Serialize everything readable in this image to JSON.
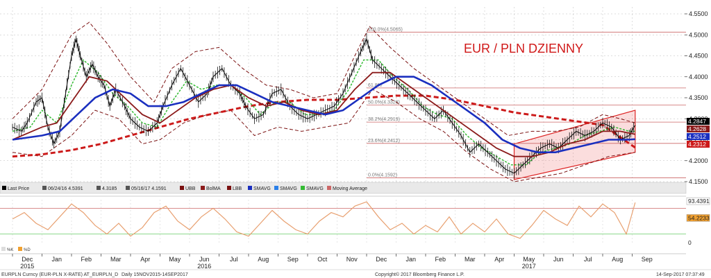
{
  "chart_data": {
    "type": "line",
    "title": "EUR / PLN DZIENNY",
    "instrument": "EURPLN Curncy (EUR-PLN X-RATE) AT_EURPLN_D",
    "period": "Daily 15NOV2015-14SEP2017",
    "copyright": "Copyright© 2017 Bloomberg Finance L.P.",
    "timestamp": "14-Sep-2017 07:37:49",
    "colors": {
      "price": "#000000",
      "bollinger": "#7a1010",
      "ma_short": "#33bb33",
      "ma_mid": "#8b1a1a",
      "ma_blue": "#1a2fbf",
      "ma_long": "#cc1a1a",
      "fib": "#cc6666",
      "channel": "#dd2222",
      "oscillator": "#e8a070"
    },
    "legend": [
      {
        "key": "last-price",
        "label": "Last Price"
      },
      {
        "key": "high",
        "label": "06/24/16 4.5391"
      },
      {
        "key": "avg",
        "label": "4.3185"
      },
      {
        "key": "low",
        "label": "05/16/17 4.1591"
      },
      {
        "key": "ubb",
        "label": "UBB"
      },
      {
        "key": "bolma",
        "label": "BolMA"
      },
      {
        "key": "lbb",
        "label": "LBB"
      },
      {
        "key": "smavg1",
        "label": "SMAVG"
      },
      {
        "key": "smavg2",
        "label": "SMAVG"
      },
      {
        "key": "smavg3",
        "label": "SMAVG"
      },
      {
        "key": "mavg",
        "label": "Moving Average"
      }
    ],
    "y_axis": {
      "min": 4.15,
      "max": 4.55,
      "ticks": [
        4.15,
        4.2,
        4.25,
        4.3,
        4.35,
        4.4,
        4.45,
        4.5,
        4.55
      ],
      "tick_labels": [
        "4.1500",
        "4.2000",
        "4.2500",
        "4.3000",
        "4.3500",
        "4.4000",
        "4.4500",
        "4.5000",
        "4.5500"
      ]
    },
    "x_axis": {
      "labels": [
        "Dec",
        "Jan",
        "Feb",
        "Mar",
        "Apr",
        "May",
        "Jun",
        "Jul",
        "Aug",
        "Sep",
        "Oct",
        "Nov",
        "Dec",
        "Jan",
        "Feb",
        "Mar",
        "Apr",
        "May",
        "Jun",
        "Jul",
        "Aug",
        "Sep"
      ],
      "year_labels": [
        {
          "after": 0,
          "label": "2015"
        },
        {
          "after": 6,
          "label": "2016"
        },
        {
          "after": 17,
          "label": "2017"
        }
      ]
    },
    "fib_levels": [
      {
        "label": "100.0%(4.5065)",
        "value": 4.5065
      },
      {
        "label": "61.8%",
        "value": 4.3733
      },
      {
        "label": "50.0%(4.3328)",
        "value": 4.3328
      },
      {
        "label": "38.2%(4.2919)",
        "value": 4.2919
      },
      {
        "label": "23.6%(4.2412)",
        "value": 4.2412
      },
      {
        "label": "0.0%(4.1592)",
        "value": 4.1592
      }
    ],
    "last_values": [
      {
        "label": "4.2847",
        "value": 4.2847,
        "color": "#000000"
      },
      {
        "label": "4.2628",
        "value": 4.2628,
        "color": "#8b1a1a"
      },
      {
        "label": "4.2512",
        "value": 4.2512,
        "color": "#1a2fbf"
      },
      {
        "label": "4.2312",
        "value": 4.2312,
        "color": "#cc1a1a"
      }
    ],
    "oscillator": {
      "labels": [
        "93.4391",
        "54.2233",
        "0"
      ],
      "legend": [
        "%K",
        "%D"
      ]
    },
    "series_price": [
      [
        0,
        4.28
      ],
      [
        0.3,
        4.27
      ],
      [
        0.5,
        4.29
      ],
      [
        0.8,
        4.34
      ],
      [
        1.0,
        4.35
      ],
      [
        1.2,
        4.28
      ],
      [
        1.4,
        4.24
      ],
      [
        1.6,
        4.27
      ],
      [
        1.8,
        4.36
      ],
      [
        2.0,
        4.45
      ],
      [
        2.15,
        4.49
      ],
      [
        2.3,
        4.45
      ],
      [
        2.5,
        4.4
      ],
      [
        2.7,
        4.43
      ],
      [
        2.9,
        4.4
      ],
      [
        3.1,
        4.38
      ],
      [
        3.3,
        4.33
      ],
      [
        3.5,
        4.37
      ],
      [
        3.8,
        4.33
      ],
      [
        4.0,
        4.3
      ],
      [
        4.3,
        4.28
      ],
      [
        4.6,
        4.27
      ],
      [
        4.9,
        4.29
      ],
      [
        5.1,
        4.33
      ],
      [
        5.4,
        4.38
      ],
      [
        5.7,
        4.42
      ],
      [
        6.0,
        4.38
      ],
      [
        6.3,
        4.34
      ],
      [
        6.6,
        4.36
      ],
      [
        6.8,
        4.4
      ],
      [
        7.1,
        4.42
      ],
      [
        7.4,
        4.38
      ],
      [
        7.7,
        4.36
      ],
      [
        7.9,
        4.33
      ],
      [
        8.2,
        4.3
      ],
      [
        8.5,
        4.31
      ],
      [
        8.8,
        4.36
      ],
      [
        9.1,
        4.37
      ],
      [
        9.4,
        4.33
      ],
      [
        9.7,
        4.31
      ],
      [
        10.0,
        4.3
      ],
      [
        10.3,
        4.31
      ],
      [
        10.6,
        4.32
      ],
      [
        10.9,
        4.33
      ],
      [
        11.2,
        4.36
      ],
      [
        11.5,
        4.41
      ],
      [
        11.8,
        4.46
      ],
      [
        12.0,
        4.49
      ],
      [
        12.2,
        4.44
      ],
      [
        12.5,
        4.42
      ],
      [
        12.8,
        4.4
      ],
      [
        13.1,
        4.38
      ],
      [
        13.4,
        4.36
      ],
      [
        13.7,
        4.34
      ],
      [
        14.0,
        4.32
      ],
      [
        14.3,
        4.3
      ],
      [
        14.6,
        4.32
      ],
      [
        14.9,
        4.29
      ],
      [
        15.2,
        4.26
      ],
      [
        15.5,
        4.22
      ],
      [
        15.8,
        4.24
      ],
      [
        16.1,
        4.22
      ],
      [
        16.4,
        4.2
      ],
      [
        16.7,
        4.18
      ],
      [
        17.0,
        4.17
      ],
      [
        17.3,
        4.19
      ],
      [
        17.6,
        4.21
      ],
      [
        17.9,
        4.23
      ],
      [
        18.2,
        4.24
      ],
      [
        18.5,
        4.23
      ],
      [
        18.8,
        4.25
      ],
      [
        19.1,
        4.27
      ],
      [
        19.4,
        4.26
      ],
      [
        19.7,
        4.27
      ],
      [
        20.0,
        4.29
      ],
      [
        20.3,
        4.28
      ],
      [
        20.6,
        4.25
      ],
      [
        20.9,
        4.26
      ],
      [
        21.1,
        4.2847
      ]
    ],
    "series_ma_short": [
      [
        0,
        4.27
      ],
      [
        0.6,
        4.28
      ],
      [
        1.0,
        4.32
      ],
      [
        1.5,
        4.29
      ],
      [
        2.0,
        4.38
      ],
      [
        2.4,
        4.44
      ],
      [
        2.9,
        4.41
      ],
      [
        3.4,
        4.36
      ],
      [
        3.9,
        4.33
      ],
      [
        4.4,
        4.29
      ],
      [
        4.9,
        4.28
      ],
      [
        5.4,
        4.34
      ],
      [
        5.9,
        4.39
      ],
      [
        6.4,
        4.37
      ],
      [
        6.9,
        4.38
      ],
      [
        7.4,
        4.38
      ],
      [
        7.9,
        4.35
      ],
      [
        8.4,
        4.31
      ],
      [
        8.9,
        4.34
      ],
      [
        9.4,
        4.34
      ],
      [
        9.9,
        4.31
      ],
      [
        10.4,
        4.31
      ],
      [
        10.9,
        4.32
      ],
      [
        11.4,
        4.37
      ],
      [
        11.9,
        4.44
      ],
      [
        12.4,
        4.44
      ],
      [
        12.9,
        4.4
      ],
      [
        13.4,
        4.37
      ],
      [
        13.9,
        4.33
      ],
      [
        14.4,
        4.31
      ],
      [
        14.9,
        4.3
      ],
      [
        15.4,
        4.26
      ],
      [
        15.9,
        4.23
      ],
      [
        16.4,
        4.21
      ],
      [
        16.9,
        4.19
      ],
      [
        17.4,
        4.19
      ],
      [
        17.9,
        4.22
      ],
      [
        18.4,
        4.23
      ],
      [
        18.9,
        4.24
      ],
      [
        19.4,
        4.26
      ],
      [
        19.9,
        4.27
      ],
      [
        20.4,
        4.28
      ],
      [
        20.9,
        4.27
      ],
      [
        21.1,
        4.27
      ]
    ],
    "series_ma_mid": [
      [
        0,
        4.25
      ],
      [
        1.0,
        4.28
      ],
      [
        1.5,
        4.29
      ],
      [
        2.0,
        4.34
      ],
      [
        2.6,
        4.4
      ],
      [
        3.2,
        4.39
      ],
      [
        3.8,
        4.35
      ],
      [
        4.4,
        4.31
      ],
      [
        5.0,
        4.29
      ],
      [
        5.6,
        4.32
      ],
      [
        6.2,
        4.35
      ],
      [
        6.8,
        4.37
      ],
      [
        7.4,
        4.38
      ],
      [
        8.0,
        4.35
      ],
      [
        8.6,
        4.33
      ],
      [
        9.2,
        4.34
      ],
      [
        9.8,
        4.32
      ],
      [
        10.4,
        4.31
      ],
      [
        11.0,
        4.32
      ],
      [
        11.6,
        4.37
      ],
      [
        12.2,
        4.41
      ],
      [
        12.8,
        4.41
      ],
      [
        13.4,
        4.38
      ],
      [
        14.0,
        4.35
      ],
      [
        14.6,
        4.32
      ],
      [
        15.2,
        4.29
      ],
      [
        15.8,
        4.26
      ],
      [
        16.4,
        4.23
      ],
      [
        17.0,
        4.21
      ],
      [
        17.6,
        4.21
      ],
      [
        18.2,
        4.22
      ],
      [
        18.8,
        4.24
      ],
      [
        19.4,
        4.25
      ],
      [
        20.0,
        4.27
      ],
      [
        20.6,
        4.27
      ],
      [
        21.1,
        4.2628
      ]
    ],
    "series_ma_blue": [
      [
        0,
        4.25
      ],
      [
        1.0,
        4.26
      ],
      [
        1.6,
        4.27
      ],
      [
        2.2,
        4.31
      ],
      [
        2.8,
        4.35
      ],
      [
        3.4,
        4.37
      ],
      [
        4.0,
        4.36
      ],
      [
        4.6,
        4.33
      ],
      [
        5.2,
        4.33
      ],
      [
        5.8,
        4.34
      ],
      [
        6.4,
        4.36
      ],
      [
        7.0,
        4.38
      ],
      [
        7.6,
        4.38
      ],
      [
        8.2,
        4.36
      ],
      [
        8.8,
        4.34
      ],
      [
        9.4,
        4.33
      ],
      [
        10.0,
        4.32
      ],
      [
        10.6,
        4.31
      ],
      [
        11.2,
        4.32
      ],
      [
        11.8,
        4.35
      ],
      [
        12.4,
        4.38
      ],
      [
        13.0,
        4.4
      ],
      [
        13.6,
        4.4
      ],
      [
        14.2,
        4.38
      ],
      [
        14.8,
        4.35
      ],
      [
        15.4,
        4.32
      ],
      [
        16.0,
        4.29
      ],
      [
        16.6,
        4.25
      ],
      [
        17.2,
        4.23
      ],
      [
        17.8,
        4.22
      ],
      [
        18.4,
        4.22
      ],
      [
        19.0,
        4.23
      ],
      [
        19.6,
        4.24
      ],
      [
        20.2,
        4.25
      ],
      [
        20.8,
        4.25
      ],
      [
        21.1,
        4.2512
      ]
    ],
    "series_ma_long": [
      [
        0,
        4.21
      ],
      [
        1.0,
        4.215
      ],
      [
        2.0,
        4.225
      ],
      [
        3.0,
        4.24
      ],
      [
        4.0,
        4.26
      ],
      [
        5.0,
        4.28
      ],
      [
        6.0,
        4.3
      ],
      [
        7.0,
        4.315
      ],
      [
        8.0,
        4.33
      ],
      [
        9.0,
        4.34
      ],
      [
        10.0,
        4.345
      ],
      [
        11.0,
        4.345
      ],
      [
        12.0,
        4.35
      ],
      [
        13.0,
        4.355
      ],
      [
        14.0,
        4.355
      ],
      [
        15.0,
        4.345
      ],
      [
        16.0,
        4.33
      ],
      [
        17.0,
        4.315
      ],
      [
        18.0,
        4.305
      ],
      [
        19.0,
        4.295
      ],
      [
        20.0,
        4.285
      ],
      [
        21.1,
        4.2312
      ]
    ],
    "series_upper_band": [
      [
        0,
        4.3
      ],
      [
        1.0,
        4.37
      ],
      [
        2.0,
        4.5
      ],
      [
        2.6,
        4.53
      ],
      [
        3.2,
        4.48
      ],
      [
        4.0,
        4.4
      ],
      [
        4.8,
        4.34
      ],
      [
        5.4,
        4.42
      ],
      [
        6.2,
        4.46
      ],
      [
        7.0,
        4.47
      ],
      [
        7.8,
        4.42
      ],
      [
        8.6,
        4.38
      ],
      [
        9.4,
        4.37
      ],
      [
        10.2,
        4.35
      ],
      [
        11.0,
        4.36
      ],
      [
        11.6,
        4.45
      ],
      [
        12.1,
        4.52
      ],
      [
        12.8,
        4.47
      ],
      [
        13.6,
        4.42
      ],
      [
        14.4,
        4.38
      ],
      [
        15.2,
        4.34
      ],
      [
        16.0,
        4.3
      ],
      [
        16.8,
        4.26
      ],
      [
        17.6,
        4.27
      ],
      [
        18.4,
        4.27
      ],
      [
        19.2,
        4.28
      ],
      [
        20.0,
        4.31
      ],
      [
        20.6,
        4.3
      ],
      [
        21.1,
        4.29
      ]
    ],
    "series_lower_band": [
      [
        0,
        4.22
      ],
      [
        1.0,
        4.21
      ],
      [
        2.0,
        4.26
      ],
      [
        2.8,
        4.32
      ],
      [
        3.6,
        4.3
      ],
      [
        4.4,
        4.24
      ],
      [
        5.0,
        4.25
      ],
      [
        5.8,
        4.29
      ],
      [
        6.6,
        4.31
      ],
      [
        7.4,
        4.32
      ],
      [
        8.2,
        4.26
      ],
      [
        9.0,
        4.28
      ],
      [
        9.8,
        4.27
      ],
      [
        10.6,
        4.28
      ],
      [
        11.4,
        4.29
      ],
      [
        12.2,
        4.37
      ],
      [
        13.0,
        4.34
      ],
      [
        13.8,
        4.3
      ],
      [
        14.6,
        4.27
      ],
      [
        15.4,
        4.22
      ],
      [
        16.2,
        4.18
      ],
      [
        17.0,
        4.15
      ],
      [
        17.8,
        4.16
      ],
      [
        18.6,
        4.17
      ],
      [
        19.4,
        4.19
      ],
      [
        20.2,
        4.21
      ],
      [
        21.1,
        4.22
      ]
    ],
    "series_oscillator": [
      [
        0,
        55
      ],
      [
        0.4,
        70
      ],
      [
        0.8,
        45
      ],
      [
        1.2,
        30
      ],
      [
        1.6,
        60
      ],
      [
        2.0,
        90
      ],
      [
        2.4,
        70
      ],
      [
        2.8,
        40
      ],
      [
        3.2,
        20
      ],
      [
        3.6,
        45
      ],
      [
        4.0,
        15
      ],
      [
        4.4,
        35
      ],
      [
        4.8,
        70
      ],
      [
        5.2,
        85
      ],
      [
        5.6,
        50
      ],
      [
        6.0,
        30
      ],
      [
        6.4,
        60
      ],
      [
        6.8,
        80
      ],
      [
        7.2,
        55
      ],
      [
        7.6,
        25
      ],
      [
        8.0,
        15
      ],
      [
        8.4,
        45
      ],
      [
        8.8,
        75
      ],
      [
        9.2,
        50
      ],
      [
        9.6,
        30
      ],
      [
        10.0,
        20
      ],
      [
        10.4,
        50
      ],
      [
        10.8,
        70
      ],
      [
        11.2,
        60
      ],
      [
        11.6,
        85
      ],
      [
        12.0,
        95
      ],
      [
        12.4,
        60
      ],
      [
        12.8,
        30
      ],
      [
        13.2,
        45
      ],
      [
        13.6,
        20
      ],
      [
        14.0,
        40
      ],
      [
        14.4,
        25
      ],
      [
        14.8,
        60
      ],
      [
        15.2,
        20
      ],
      [
        15.6,
        45
      ],
      [
        16.0,
        25
      ],
      [
        16.4,
        55
      ],
      [
        16.8,
        20
      ],
      [
        17.2,
        10
      ],
      [
        17.6,
        40
      ],
      [
        18.0,
        75
      ],
      [
        18.4,
        55
      ],
      [
        18.8,
        40
      ],
      [
        19.2,
        85
      ],
      [
        19.6,
        60
      ],
      [
        20.0,
        90
      ],
      [
        20.4,
        70
      ],
      [
        20.8,
        20
      ],
      [
        21.1,
        93.4
      ]
    ]
  }
}
